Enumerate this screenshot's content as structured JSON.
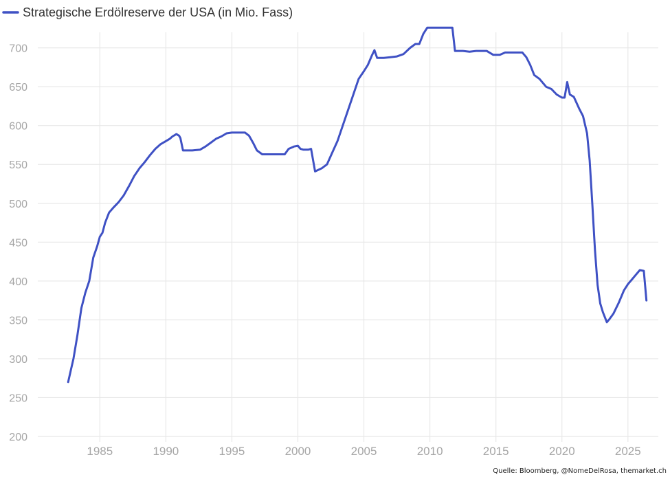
{
  "chart_data": {
    "type": "line",
    "legend_position": "top-left",
    "grid": true,
    "xlim": [
      1980.3,
      2027.3
    ],
    "ylim": [
      200,
      720
    ],
    "x_ticks": [
      1985,
      1990,
      1995,
      2000,
      2005,
      2010,
      2015,
      2020,
      2025
    ],
    "y_ticks": [
      200,
      250,
      300,
      350,
      400,
      450,
      500,
      550,
      600,
      650,
      700
    ],
    "series": [
      {
        "name": "Strategische Erdölreserve der USA (in Mio. Fass)",
        "color": "#3f51c4",
        "x": [
          1982.6,
          1982.8,
          1983.0,
          1983.3,
          1983.6,
          1983.9,
          1984.2,
          1984.5,
          1984.8,
          1985.0,
          1985.2,
          1985.4,
          1985.7,
          1986.0,
          1986.4,
          1986.8,
          1987.2,
          1987.6,
          1988.0,
          1988.4,
          1988.8,
          1989.2,
          1989.6,
          1990.0,
          1990.3,
          1990.5,
          1990.8,
          1991.0,
          1991.1,
          1991.3,
          1991.6,
          1992.0,
          1992.6,
          1993.0,
          1993.4,
          1993.8,
          1994.2,
          1994.6,
          1995.0,
          1995.5,
          1996.0,
          1996.3,
          1996.6,
          1996.9,
          1997.3,
          1998.0,
          1998.5,
          1999.0,
          1999.3,
          1999.7,
          2000.0,
          2000.2,
          2000.4,
          2000.6,
          2000.8,
          2001.0,
          2001.3,
          2001.8,
          2002.2,
          2002.6,
          2003.0,
          2003.4,
          2003.8,
          2004.2,
          2004.6,
          2005.0,
          2005.3,
          2005.6,
          2005.8,
          2006.0,
          2006.5,
          2007.0,
          2007.5,
          2008.0,
          2008.5,
          2008.9,
          2009.2,
          2009.5,
          2009.8,
          2010.2,
          2010.8,
          2011.3,
          2011.7,
          2011.9,
          2012.5,
          2013.0,
          2013.5,
          2014.0,
          2014.3,
          2014.8,
          2015.3,
          2015.7,
          2016.3,
          2017.0,
          2017.3,
          2017.6,
          2017.9,
          2018.3,
          2018.8,
          2019.2,
          2019.6,
          2020.0,
          2020.2,
          2020.4,
          2020.6,
          2020.9,
          2021.3,
          2021.6,
          2021.9,
          2022.1,
          2022.3,
          2022.5,
          2022.7,
          2022.9,
          2023.1,
          2023.4,
          2023.6,
          2023.9,
          2024.3,
          2024.7,
          2025.0,
          2025.3,
          2025.6,
          2025.9,
          2026.2,
          2026.4
        ],
        "y": [
          270,
          285,
          300,
          330,
          365,
          385,
          400,
          430,
          445,
          457,
          462,
          475,
          488,
          494,
          501,
          510,
          522,
          535,
          545,
          553,
          562,
          570,
          576,
          580,
          583,
          586,
          589,
          587,
          584,
          568,
          568,
          568,
          569,
          573,
          578,
          583,
          586,
          590,
          591,
          591,
          591,
          587,
          578,
          568,
          563,
          563,
          563,
          563,
          570,
          573,
          574,
          570,
          569,
          569,
          569,
          570,
          541,
          545,
          550,
          565,
          580,
          600,
          620,
          640,
          660,
          670,
          678,
          690,
          697,
          687,
          687,
          688,
          689,
          692,
          700,
          705,
          705,
          718,
          726,
          726,
          726,
          726,
          726,
          696,
          696,
          695,
          696,
          696,
          696,
          691,
          691,
          694,
          694,
          694,
          688,
          678,
          665,
          660,
          650,
          647,
          640,
          636,
          636,
          656,
          640,
          637,
          622,
          612,
          590,
          555,
          500,
          440,
          395,
          371,
          360,
          347,
          351,
          358,
          372,
          388,
          396,
          402,
          408,
          414,
          413,
          375
        ]
      }
    ]
  },
  "source": "Quelle: Bloomberg, @NomeDelRosa, themarket.ch"
}
